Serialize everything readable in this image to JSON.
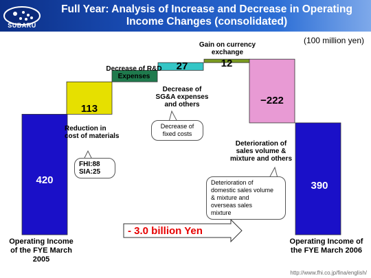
{
  "header": {
    "title_line1": "Full Year: Analysis of Increase and Decrease in Operating",
    "title_line2": "Income Changes (consolidated)",
    "logo_text": "SUBARU"
  },
  "unit": "(100 million yen)",
  "change_label": "- 3.0 billion Yen",
  "callouts": {
    "materials": [
      "FHI:88",
      "SIA:25"
    ],
    "sga": [
      "Decrease of",
      "fixed costs"
    ],
    "volume": [
      "Deterioration of",
      "domestic sales volume",
      "& mixture and",
      "overseas sales",
      "mixture"
    ]
  },
  "footer_url": "http://www.fhi.co.jp/fina/english/",
  "colors": {
    "total": "#1a10c8",
    "materials": "#e6e000",
    "rd": "#1f7a4d",
    "sga": "#34c6c6",
    "currency": "#7a9a20",
    "volume": "#e89ad4"
  },
  "chart_data": {
    "type": "waterfall",
    "steps": [
      {
        "label": "Operating Income of the FYE March 2005",
        "value": 420,
        "kind": "total",
        "color_key": "total"
      },
      {
        "label": "Reduction in cost of materials",
        "value": 113,
        "kind": "delta",
        "color_key": "materials"
      },
      {
        "label": "Decrease of R&D Expenses",
        "value": 40,
        "kind": "delta",
        "color_key": "rd"
      },
      {
        "label": "Decrease of SG&A expenses and others",
        "value": 27,
        "kind": "delta",
        "color_key": "sga"
      },
      {
        "label": "Gain on currency exchange",
        "value": 12,
        "kind": "delta",
        "color_key": "currency"
      },
      {
        "label": "Deterioration of sales volume & mixture and others",
        "value": -222,
        "kind": "delta",
        "color_key": "volume"
      },
      {
        "label": "Operating Income of the FYE March 2006",
        "value": 390,
        "kind": "total",
        "color_key": "total"
      }
    ],
    "value_labels": [
      "420",
      "113",
      "40",
      "27",
      "12",
      "−222",
      "390"
    ]
  }
}
